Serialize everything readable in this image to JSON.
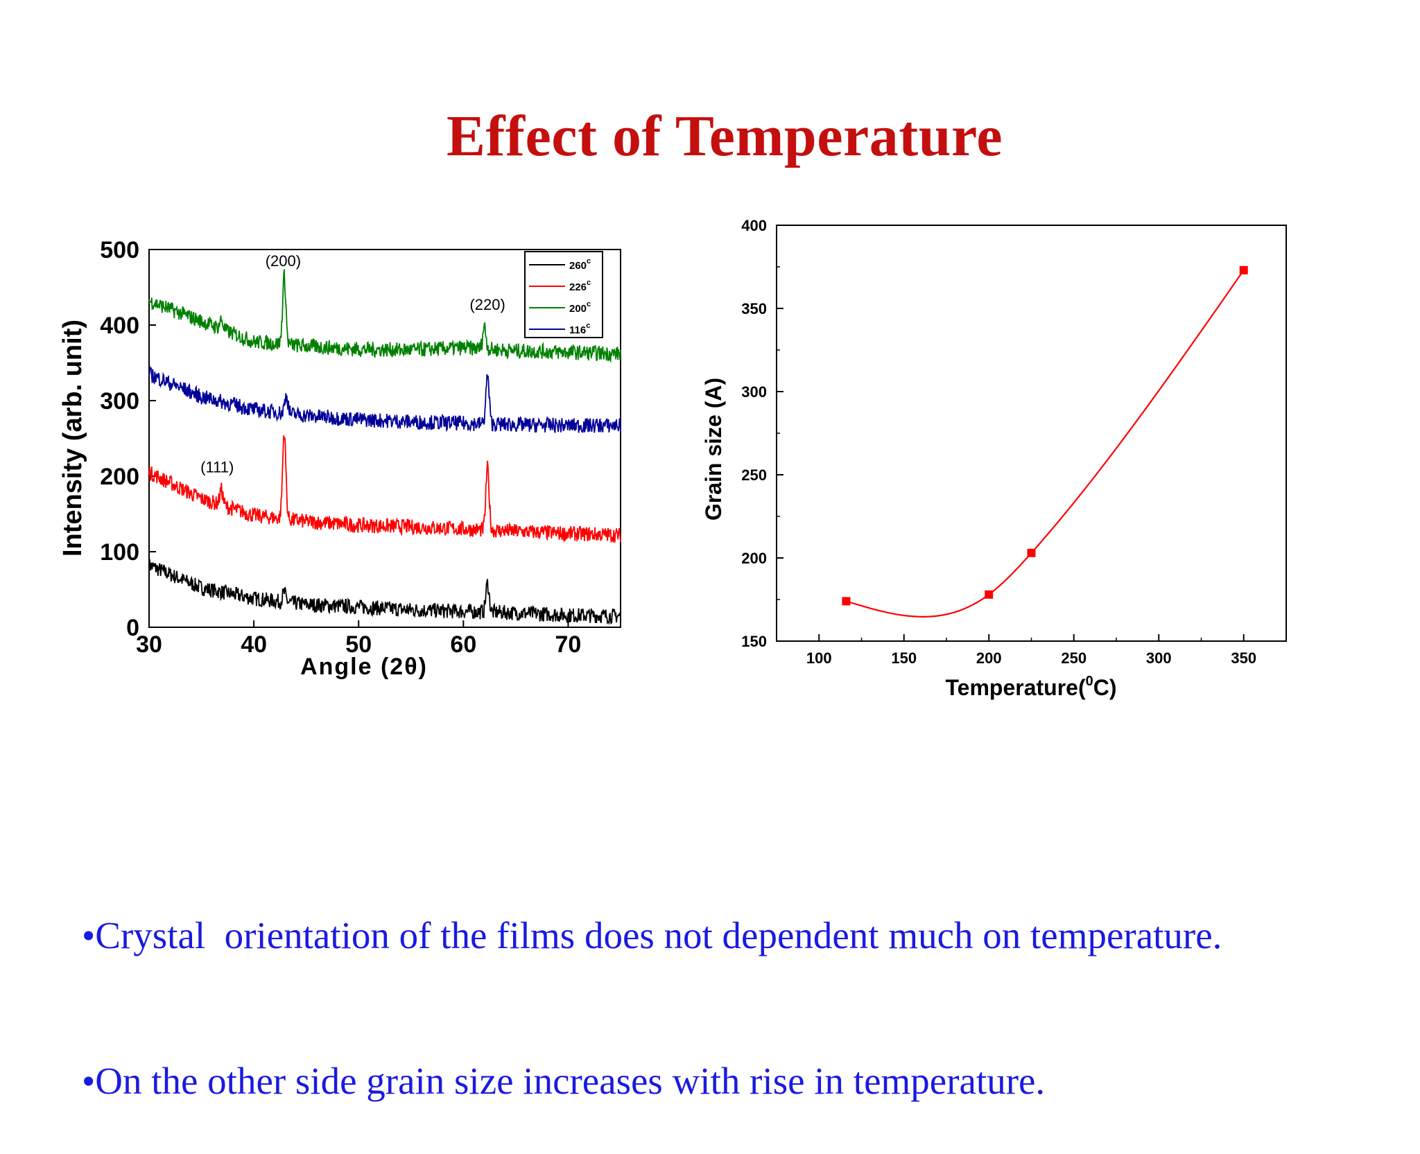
{
  "slide": {
    "title": "Effect of Temperature",
    "bullets": [
      "•Crystal  orientation of the films does not dependent much on temperature.",
      "•On the other side grain size increases with rise in temperature."
    ]
  },
  "colors": {
    "title": "#c40f0f",
    "bullets": "#1a1ae0",
    "series_260": "#000000",
    "series_226": "#ff0000",
    "series_200": "#008000",
    "series_116": "#000099"
  },
  "chart_data": [
    {
      "type": "line",
      "xlabel": "Angle (2θ)",
      "ylabel": "Intensity (arb. unit)",
      "xlim": [
        30,
        75
      ],
      "ylim": [
        0,
        500
      ],
      "xticks": [
        "30",
        "40",
        "50",
        "60",
        "70"
      ],
      "yticks": [
        "0",
        "100",
        "200",
        "300",
        "400",
        "500"
      ],
      "legend_position": "top-right",
      "annotations": [
        {
          "text": "(200)",
          "x": 42.8,
          "y": 478
        },
        {
          "text": "(220)",
          "x": 62.3,
          "y": 420
        },
        {
          "text": "(111)",
          "x": 36.5,
          "y": 205
        }
      ],
      "series": [
        {
          "name": "260",
          "color": "#000000",
          "baseline": [
            [
              30,
              82
            ],
            [
              35,
              52
            ],
            [
              40,
              38
            ],
            [
              45,
              30
            ],
            [
              50,
              27
            ],
            [
              55,
              23
            ],
            [
              60,
              21
            ],
            [
              65,
              19
            ],
            [
              70,
              16
            ],
            [
              75,
              15
            ]
          ],
          "peaks": [
            {
              "x": 42.9,
              "h": 12
            },
            {
              "x": 62.3,
              "h": 38
            }
          ]
        },
        {
          "name": "226",
          "color": "#ff0000",
          "baseline": [
            [
              30,
              205
            ],
            [
              35,
              170
            ],
            [
              40,
              148
            ],
            [
              45,
              140
            ],
            [
              50,
              135
            ],
            [
              55,
              133
            ],
            [
              60,
              130
            ],
            [
              65,
              127
            ],
            [
              70,
              124
            ],
            [
              75,
              122
            ]
          ],
          "peaks": [
            {
              "x": 36.9,
              "h": 20
            },
            {
              "x": 42.9,
              "h": 115
            },
            {
              "x": 62.3,
              "h": 82
            }
          ]
        },
        {
          "name": "200",
          "color": "#008000",
          "baseline": [
            [
              30,
              432
            ],
            [
              35,
              405
            ],
            [
              40,
              378
            ],
            [
              45,
              372
            ],
            [
              50,
              368
            ],
            [
              55,
              367
            ],
            [
              60,
              370
            ],
            [
              65,
              366
            ],
            [
              70,
              364
            ],
            [
              75,
              362
            ]
          ],
          "peaks": [
            {
              "x": 36.9,
              "h": 12
            },
            {
              "x": 42.9,
              "h": 90
            },
            {
              "x": 62.0,
              "h": 30
            }
          ]
        },
        {
          "name": "116",
          "color": "#000099",
          "baseline": [
            [
              30,
              335
            ],
            [
              35,
              305
            ],
            [
              40,
              288
            ],
            [
              45,
              280
            ],
            [
              50,
              275
            ],
            [
              55,
              272
            ],
            [
              60,
              270
            ],
            [
              65,
              268
            ],
            [
              70,
              267
            ],
            [
              75,
              267
            ]
          ],
          "peaks": [
            {
              "x": 43.1,
              "h": 24
            },
            {
              "x": 62.3,
              "h": 63
            }
          ]
        }
      ],
      "legend_labels": [
        "260",
        "226",
        "200",
        "116"
      ],
      "legend_superscript": "c"
    },
    {
      "type": "line",
      "xlabel": "Temperature(°C)",
      "xlabel_main": "Temperature(",
      "xlabel_sup": "0",
      "xlabel_end": "C)",
      "ylabel": "Grain size (A)",
      "xlim": [
        75,
        375
      ],
      "ylim": [
        150,
        400
      ],
      "xticks": [
        "100",
        "150",
        "200",
        "250",
        "300",
        "350"
      ],
      "yticks": [
        "150",
        "200",
        "250",
        "300",
        "350",
        "400"
      ],
      "series": [
        {
          "color": "#ff0000",
          "x": [
            116,
            200,
            225,
            350
          ],
          "y": [
            174,
            178,
            203,
            373
          ]
        }
      ]
    }
  ]
}
